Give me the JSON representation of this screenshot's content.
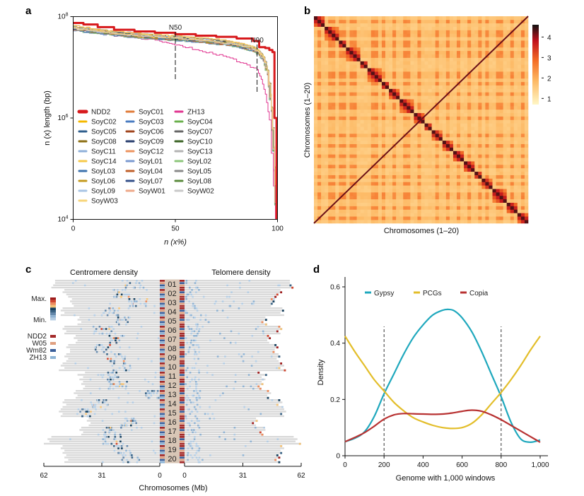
{
  "figure": {
    "panels": [
      "a",
      "b",
      "c",
      "d"
    ]
  },
  "chart_data": [
    {
      "panel": "a",
      "type": "line",
      "title": "",
      "xlabel": "n (x%)",
      "ylabel": "n (x) length (bp)",
      "x_ticks": [
        "0",
        "50",
        "100"
      ],
      "y_ticks": [
        "10^4",
        "10^6",
        "10^8"
      ],
      "xlim": [
        0,
        100
      ],
      "ylim_log10": [
        4,
        8
      ],
      "y_scale": "log",
      "annotations": [
        {
          "label": "N50",
          "x": 50
        },
        {
          "label": "N90",
          "x": 90
        }
      ],
      "legend_columns": 3,
      "legend_placement": "lower-left",
      "series": [
        {
          "name": "NDD2",
          "color": "#d7191c",
          "highlight": true,
          "points": [
            [
              0,
              75000000.0
            ],
            [
              5,
              70000000.0
            ],
            [
              12,
              62000000.0
            ],
            [
              20,
              55000000.0
            ],
            [
              30,
              51000000.0
            ],
            [
              40,
              48000000.0
            ],
            [
              50,
              45000000.0
            ],
            [
              60,
              42000000.0
            ],
            [
              70,
              40000000.0
            ],
            [
              80,
              37000000.0
            ],
            [
              88,
              33000000.0
            ],
            [
              91,
              25000000.0
            ],
            [
              94,
              24000000.0
            ],
            [
              96,
              22000000.0
            ],
            [
              97.5,
              20000000.0
            ],
            [
              98.5,
              1000000.0
            ],
            [
              99.5,
              10000.0
            ]
          ]
        },
        {
          "name": "SoyC01",
          "color": "#e07b39",
          "points": "typical"
        },
        {
          "name": "ZH13",
          "color": "#e0338f",
          "points": [
            [
              0,
              56000000.0
            ],
            [
              10,
              48000000.0
            ],
            [
              20,
              42000000.0
            ],
            [
              30,
              38000000.0
            ],
            [
              40,
              34000000.0
            ],
            [
              47,
              29000000.0
            ],
            [
              55,
              25000000.0
            ],
            [
              65,
              20000000.0
            ],
            [
              75,
              16000000.0
            ],
            [
              85,
              11000000.0
            ],
            [
              90,
              9000000.0
            ],
            [
              92,
              6000000.0
            ],
            [
              94,
              3000000.0
            ],
            [
              96,
              900000.0
            ],
            [
              99,
              10000.0
            ]
          ]
        },
        {
          "name": "SoyC02",
          "color": "#f5b800",
          "points": "typical"
        },
        {
          "name": "SoyC03",
          "color": "#4a7cc1",
          "points": "typical"
        },
        {
          "name": "SoyC04",
          "color": "#6ab04c",
          "points": "typical"
        },
        {
          "name": "SoyC05",
          "color": "#2e5e8c",
          "points": "typical"
        },
        {
          "name": "SoyC06",
          "color": "#a0441c",
          "points": "typical"
        },
        {
          "name": "SoyC07",
          "color": "#666666",
          "points": "typical"
        },
        {
          "name": "SoyC08",
          "color": "#8c6e12",
          "points": "typical"
        },
        {
          "name": "SoyC09",
          "color": "#283e6e",
          "points": "typical"
        },
        {
          "name": "SoyC10",
          "color": "#3a6324",
          "points": "typical"
        },
        {
          "name": "SoyC11",
          "color": "#8fb0d9",
          "points": "typical"
        },
        {
          "name": "SoyC12",
          "color": "#ec9460",
          "points": "typical"
        },
        {
          "name": "SoyC13",
          "color": "#b3b3b3",
          "points": "typical"
        },
        {
          "name": "SoyC14",
          "color": "#f6c94a",
          "points": "typical"
        },
        {
          "name": "SoyL01",
          "color": "#7b9ad0",
          "points": "typical"
        },
        {
          "name": "SoyL02",
          "color": "#8cc57a",
          "points": "typical"
        },
        {
          "name": "SoyL03",
          "color": "#3d73ad",
          "points": "typical"
        },
        {
          "name": "SoyL04",
          "color": "#c0602a",
          "points": "typical"
        },
        {
          "name": "SoyL05",
          "color": "#8a8a8a",
          "points": "typical"
        },
        {
          "name": "SoyL06",
          "color": "#c49a1e",
          "points": "typical"
        },
        {
          "name": "SoyL07",
          "color": "#34508a",
          "points": "typical"
        },
        {
          "name": "SoyL08",
          "color": "#5a8a3c",
          "points": "typical"
        },
        {
          "name": "SoyL09",
          "color": "#a8c4e4",
          "points": "typical"
        },
        {
          "name": "SoyW01",
          "color": "#eea98a",
          "points": "typical"
        },
        {
          "name": "SoyW02",
          "color": "#c8c8c8",
          "points": "typical"
        },
        {
          "name": "SoyW03",
          "color": "#f7d478",
          "points": "typical"
        }
      ],
      "typical_curve": [
        [
          0,
          60000000.0
        ],
        [
          10,
          52000000.0
        ],
        [
          20,
          47000000.0
        ],
        [
          30,
          43000000.0
        ],
        [
          40,
          40000000.0
        ],
        [
          50,
          38000000.0
        ],
        [
          60,
          35000000.0
        ],
        [
          70,
          32000000.0
        ],
        [
          80,
          28000000.0
        ],
        [
          88,
          23000000.0
        ],
        [
          91,
          19000000.0
        ],
        [
          93,
          15000000.0
        ],
        [
          95,
          8000000.0
        ],
        [
          97,
          1500000.0
        ],
        [
          98.5,
          100000.0
        ],
        [
          99.3,
          10000.0
        ]
      ]
    },
    {
      "panel": "b",
      "type": "heatmap",
      "title": "",
      "xlabel": "Chromosomes (1–20)",
      "ylabel": "Chromosomes (1–20)",
      "n_chromosomes": 20,
      "colorbar": {
        "ticks": [
          1,
          2,
          3,
          4
        ],
        "range": [
          0.7,
          4.6
        ],
        "colors": [
          "#fff7c6",
          "#fdb863",
          "#f46d26",
          "#c0101c",
          "#111111"
        ]
      },
      "description": "Hi-C contact map; strong intra-chromosomal diagonal blocks (~3.5–4.5), inter-chromosomal background ~1.5–2.2"
    },
    {
      "panel": "c",
      "type": "heatmap",
      "left_title": "Centromere density",
      "right_title": "Telomere density",
      "xlabel": "Chromosomes (Mb)",
      "left_x_ticks": [
        "62",
        "31",
        "0"
      ],
      "right_x_ticks": [
        "0",
        "31",
        "62"
      ],
      "xlim_mb": [
        0,
        62
      ],
      "chromosomes": [
        "01",
        "02",
        "03",
        "04",
        "05",
        "06",
        "07",
        "08",
        "09",
        "10",
        "11",
        "12",
        "13",
        "14",
        "15",
        "16",
        "17",
        "18",
        "19",
        "20"
      ],
      "accessions": [
        {
          "name": "NDD2",
          "color": "#a32a2a"
        },
        {
          "name": "W05",
          "color": "#e0a080"
        },
        {
          "name": "Wm82",
          "color": "#3b5f9a"
        },
        {
          "name": "ZH13",
          "color": "#8fb5d6"
        }
      ],
      "density_scale": {
        "max_label": "Max.",
        "min_label": "Min.",
        "colors": [
          "#9e1b1b",
          "#d0452e",
          "#ec8a5a",
          "#f2c277",
          "#16405e",
          "#3a6385",
          "#6488ab",
          "#8fb2d2",
          "#b3cce3"
        ]
      },
      "chromosome_lengths_mb": {
        "01": [
          56,
          56,
          57,
          58
        ],
        "02": [
          51,
          52,
          50,
          49
        ],
        "03": [
          47,
          48,
          47,
          46
        ],
        "04": [
          52,
          53,
          51,
          53
        ],
        "05": [
          43,
          44,
          42,
          44
        ],
        "06": [
          51,
          52,
          50,
          51
        ],
        "07": [
          45,
          46,
          44,
          45
        ],
        "08": [
          49,
          50,
          48,
          48
        ],
        "09": [
          50,
          51,
          49,
          50
        ],
        "10": [
          52,
          53,
          51,
          54
        ],
        "11": [
          40,
          44,
          41,
          43
        ],
        "12": [
          41,
          42,
          40,
          41
        ],
        "13": [
          45,
          46,
          44,
          45
        ],
        "14": [
          51,
          52,
          50,
          52
        ],
        "15": [
          53,
          54,
          52,
          53
        ],
        "16": [
          38,
          39,
          37,
          38
        ],
        "17": [
          42,
          43,
          41,
          42
        ],
        "18": [
          58,
          60,
          59,
          62
        ],
        "19": [
          52,
          53,
          51,
          52
        ],
        "20": [
          50,
          51,
          49,
          51
        ]
      },
      "centromere_position_mb": {
        "01": 14,
        "02": 21,
        "03": 12,
        "04": 27,
        "05": 21,
        "06": 31,
        "07": 23,
        "08": 30,
        "09": 24,
        "10": 21,
        "11": 27,
        "12": 23,
        "13": 4,
        "14": 33,
        "15": 40,
        "16": 18,
        "17": 26,
        "18": 26,
        "19": 21,
        "20": 16
      }
    },
    {
      "panel": "d",
      "type": "line",
      "title": "",
      "xlabel": "Genome with 1,000 windows",
      "ylabel": "Density",
      "x_ticks": [
        "0",
        "200",
        "400",
        "600",
        "800",
        "1,000"
      ],
      "y_ticks": [
        "0",
        "0.2",
        "0.4",
        "0.6"
      ],
      "xlim": [
        0,
        1000
      ],
      "ylim": [
        0,
        0.6
      ],
      "vlines": [
        200,
        800
      ],
      "legend_placement": "top",
      "series": [
        {
          "name": "Gypsy",
          "color": "#1fa8bd",
          "x": [
            0,
            50,
            100,
            150,
            200,
            250,
            300,
            350,
            400,
            450,
            500,
            530,
            560,
            600,
            650,
            700,
            750,
            800,
            850,
            900,
            950,
            1000
          ],
          "y": [
            0.05,
            0.062,
            0.085,
            0.14,
            0.22,
            0.29,
            0.36,
            0.42,
            0.465,
            0.5,
            0.517,
            0.52,
            0.515,
            0.49,
            0.44,
            0.37,
            0.29,
            0.21,
            0.12,
            0.06,
            0.048,
            0.056
          ]
        },
        {
          "name": "PCGs",
          "color": "#e3be2a",
          "x": [
            0,
            50,
            100,
            150,
            200,
            250,
            300,
            350,
            400,
            450,
            500,
            550,
            600,
            650,
            700,
            750,
            800,
            850,
            900,
            950,
            1000
          ],
          "y": [
            0.425,
            0.37,
            0.32,
            0.27,
            0.23,
            0.19,
            0.16,
            0.135,
            0.12,
            0.108,
            0.1,
            0.097,
            0.1,
            0.115,
            0.145,
            0.185,
            0.225,
            0.27,
            0.32,
            0.375,
            0.425
          ]
        },
        {
          "name": "Copia",
          "color": "#b83232",
          "x": [
            0,
            50,
            100,
            150,
            200,
            250,
            300,
            350,
            400,
            450,
            500,
            550,
            600,
            650,
            700,
            750,
            800,
            850,
            900,
            950,
            1000
          ],
          "y": [
            0.05,
            0.065,
            0.082,
            0.105,
            0.13,
            0.145,
            0.15,
            0.149,
            0.148,
            0.147,
            0.148,
            0.152,
            0.158,
            0.162,
            0.158,
            0.145,
            0.128,
            0.108,
            0.088,
            0.068,
            0.048
          ]
        }
      ]
    }
  ]
}
